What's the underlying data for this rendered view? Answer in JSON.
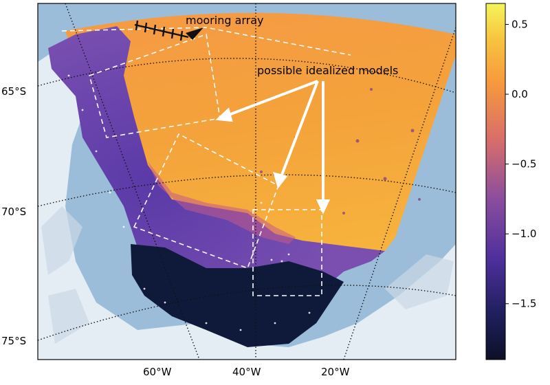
{
  "map": {
    "annotations": {
      "mooring": "mooring array",
      "models": "possible idealized models"
    },
    "lat_labels": [
      "65°S",
      "70°S",
      "75°S"
    ],
    "lon_labels": [
      "60°W",
      "40°W",
      "20°W"
    ]
  },
  "colorbar": {
    "colormap": "plasma-like (dark navy → purple → orange → yellow)",
    "min": -1.9,
    "max": 0.65,
    "tick_labels": [
      "0.5",
      "0.0",
      "−0.5",
      "−1.0",
      "−1.5"
    ]
  },
  "colors": {
    "ocean_background": "#8fb6d6",
    "ice": "#e6eef6",
    "field_low": "#0d1b3a",
    "field_mid": "#5b3aa3",
    "field_high": "#f9a13b",
    "field_top": "#ffe55c"
  }
}
